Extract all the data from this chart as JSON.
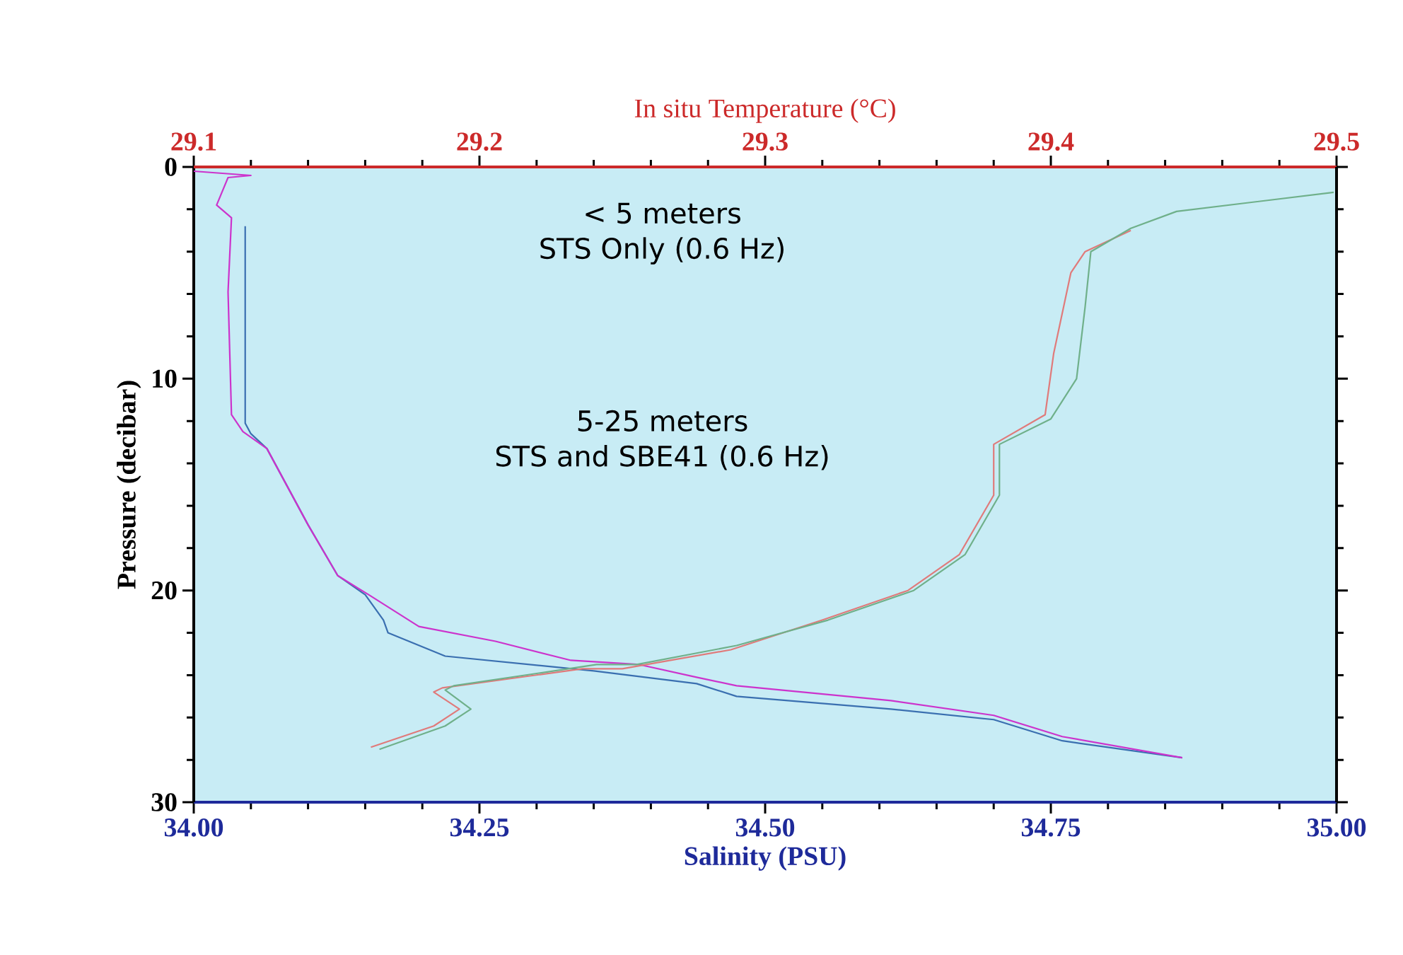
{
  "chart_data": {
    "type": "line",
    "xlabel": "Salinity (PSU)",
    "ylabel": "Pressure (decibar)",
    "x2label": "In situ Temperature (°C)",
    "xlim": [
      34.0,
      35.0
    ],
    "xticks": [
      {
        "value": 34.0,
        "label": "34.00"
      },
      {
        "value": 34.25,
        "label": "34.25"
      },
      {
        "value": 34.5,
        "label": "34.50"
      },
      {
        "value": 34.75,
        "label": "34.75"
      },
      {
        "value": 35.0,
        "label": "35.00"
      }
    ],
    "x2lim": [
      29.1,
      29.5
    ],
    "x2ticks": [
      29.1,
      29.2,
      29.3,
      29.4,
      29.5
    ],
    "ylim": [
      30,
      0
    ],
    "yticks": [
      0,
      10,
      20,
      30
    ],
    "grid": false,
    "line_style": "solid",
    "marker": "none",
    "annotations": [
      "< 5 meters",
      "STS Only (0.6 Hz)",
      "5-25 meters",
      "STS and SBE41 (0.6 Hz)"
    ],
    "series": [
      {
        "color": "#3a6fb0",
        "x": [
          34.045,
          34.045,
          34.05,
          34.064,
          34.1,
          34.126,
          34.15,
          34.166,
          34.17,
          34.22,
          34.35,
          34.44,
          34.475,
          34.61,
          34.7,
          34.76,
          34.865
        ],
        "values": [
          2.8,
          12.1,
          12.6,
          13.3,
          16.9,
          19.3,
          20.2,
          21.4,
          22.0,
          23.1,
          23.8,
          24.4,
          25.0,
          25.6,
          26.1,
          27.1,
          27.9
        ]
      },
      {
        "color": "#cc33cc",
        "x": [
          34.0,
          34.05,
          34.03,
          34.02,
          34.033,
          34.03,
          34.033,
          34.043,
          34.064,
          34.1,
          34.126,
          34.153,
          34.197,
          34.264,
          34.33,
          34.39,
          34.44,
          34.475,
          34.61,
          34.7,
          34.76,
          34.865
        ],
        "values": [
          0.2,
          0.4,
          0.5,
          1.8,
          2.4,
          5.9,
          11.7,
          12.5,
          13.3,
          16.9,
          19.3,
          20.2,
          21.7,
          22.4,
          23.3,
          23.5,
          24.1,
          24.5,
          25.2,
          25.9,
          26.9,
          27.9
        ]
      },
      {
        "color": "#e07a7a",
        "axis": "x2",
        "x": [
          29.428,
          29.412,
          29.407,
          29.401,
          29.398,
          29.38,
          29.38,
          29.368,
          29.35,
          29.32,
          29.288,
          29.25,
          29.236,
          29.187,
          29.184,
          29.193,
          29.184,
          29.162
        ],
        "values": [
          3.0,
          4.0,
          5.0,
          8.8,
          11.7,
          13.1,
          15.5,
          18.3,
          20.0,
          21.4,
          22.8,
          23.7,
          23.7,
          24.6,
          24.8,
          25.6,
          26.4,
          27.4
        ]
      },
      {
        "color": "#6fb08a",
        "axis": "x2",
        "x": [
          29.499,
          29.444,
          29.428,
          29.414,
          29.412,
          29.409,
          29.4,
          29.382,
          29.382,
          29.37,
          29.352,
          29.322,
          29.29,
          29.255,
          29.241,
          29.191,
          29.188,
          29.197,
          29.188,
          29.165
        ],
        "values": [
          1.2,
          2.1,
          2.9,
          4.0,
          6.6,
          10.0,
          11.9,
          13.1,
          15.5,
          18.3,
          20.0,
          21.4,
          22.6,
          23.5,
          23.5,
          24.5,
          24.7,
          25.6,
          26.4,
          27.5
        ]
      }
    ]
  }
}
